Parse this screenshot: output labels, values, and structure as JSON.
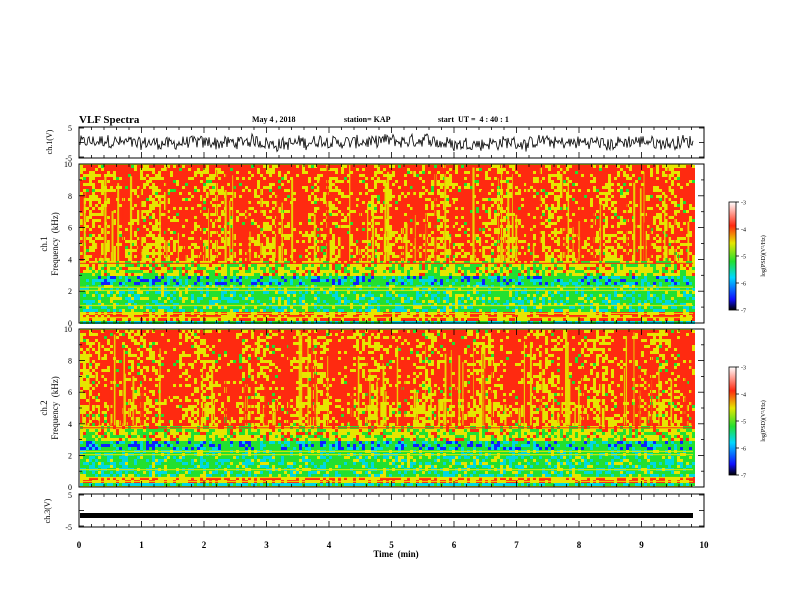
{
  "header": {
    "title": "VLF Spectra",
    "date": "May 4 , 2018",
    "station": "station= KAP",
    "start_ut": "start  UT =  4 : 40 : 1"
  },
  "chart_data": [
    {
      "type": "line",
      "panel": "ch1-waveform",
      "ylabel": "ch.1(V)",
      "ylim": [
        -5,
        5
      ],
      "yticks": [
        "5",
        "-5"
      ],
      "xlim": [
        0,
        10
      ]
    },
    {
      "type": "heatmap",
      "panel": "ch1-spectrogram",
      "ylabel": "ch.1",
      "ylabel2": "Frequency  (kHz)",
      "ylim": [
        0,
        10
      ],
      "yticks": [
        "0",
        "2",
        "4",
        "6",
        "8",
        "10"
      ],
      "xlim": [
        0,
        10
      ],
      "colorbar": {
        "label": "log(PSD)(V²/Hz)",
        "ticks": [
          "-3",
          "-4",
          "-5",
          "-6",
          "-7"
        ],
        "range": [
          -7,
          -3
        ]
      }
    },
    {
      "type": "heatmap",
      "panel": "ch2-spectrogram",
      "ylabel": "ch.2",
      "ylabel2": "Frequency  (kHz)",
      "ylim": [
        0,
        10
      ],
      "yticks": [
        "0",
        "2",
        "4",
        "6",
        "8",
        "10"
      ],
      "xlim": [
        0,
        10
      ],
      "colorbar": {
        "label": "log(PSD)(V²/Hz)",
        "ticks": [
          "-3",
          "-4",
          "-5",
          "-6",
          "-7"
        ],
        "range": [
          -7,
          -3
        ]
      }
    },
    {
      "type": "line",
      "panel": "ch3-waveform",
      "ylabel": "ch.3(V)",
      "ylim": [
        -5,
        5
      ],
      "yticks": [
        "5",
        "-5"
      ],
      "xlim": [
        0,
        10
      ],
      "xlabel": "Time  (min)",
      "xticks": [
        "0",
        "1",
        "2",
        "3",
        "4",
        "5",
        "6",
        "7",
        "8",
        "9",
        "10"
      ],
      "constant_value": -1.5
    }
  ],
  "colors": {
    "red": "#ff2a10",
    "yellow": "#e6e600",
    "green": "#22e030",
    "cyan": "#00d8e0",
    "blue": "#1020ff",
    "trace": "#000000"
  }
}
